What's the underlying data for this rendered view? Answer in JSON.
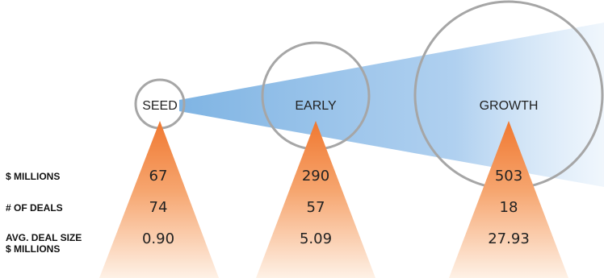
{
  "row_labels": {
    "dollars": "$ MILLIONS",
    "deals": "# OF DEALS",
    "avg_line1": "AVG. DEAL SIZE",
    "avg_line2": "$ MILLIONS"
  },
  "stages": [
    {
      "name": "SEED",
      "dollars": "67",
      "deals": "74",
      "avg": "0.90"
    },
    {
      "name": "EARLY",
      "dollars": "290",
      "deals": "57",
      "avg": "5.09"
    },
    {
      "name": "GROWTH",
      "dollars": "503",
      "deals": "18",
      "avg": "27.93"
    }
  ],
  "colors": {
    "circle_stroke": "#a6a6a6",
    "beam": "#7fb4e3",
    "pyramid_top": "#f07830",
    "pyramid_bottom": "#fef1e6"
  }
}
